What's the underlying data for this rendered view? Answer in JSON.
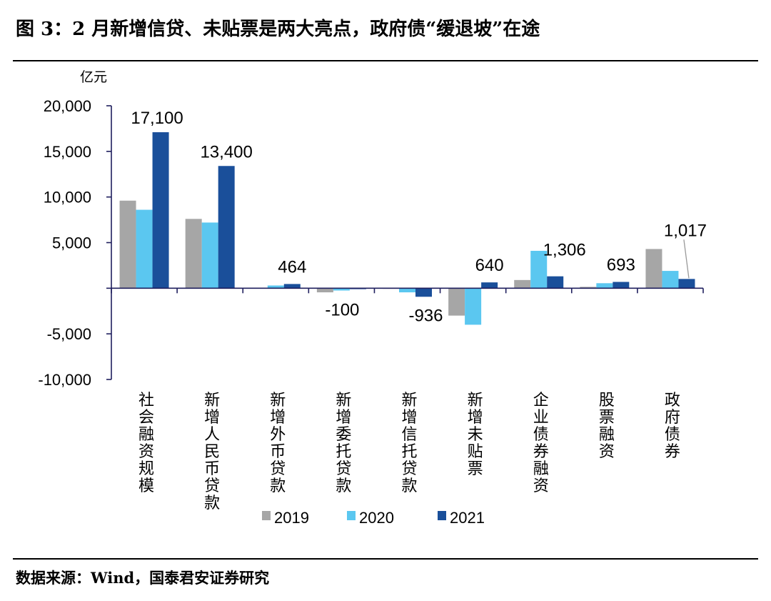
{
  "header": {
    "title": "图 3：2 月新增信贷、未贴票是两大亮点，政府债“缓退坡”在途"
  },
  "footer": {
    "source": "数据来源：Wind，国泰君安证券研究"
  },
  "colors": {
    "2019": "#a6a6a6",
    "2020": "#5bc7f0",
    "2021": "#1a4f9a",
    "axis": "#1f1f5e"
  },
  "chart_data": {
    "type": "bar",
    "ylabel": "亿元",
    "ylim": [
      -10000,
      20000
    ],
    "yticks": [
      20000,
      15000,
      10000,
      5000,
      0,
      -5000,
      -10000
    ],
    "ytick_labels": [
      "20,000",
      "15,000",
      "10,000",
      "5,000",
      "",
      "-5,000",
      "-10,000"
    ],
    "categories": [
      "社会融资规模",
      "新增人民币贷款",
      "新增外币贷款",
      "新增委托贷款",
      "新增信托贷款",
      "新增未贴票",
      "企业债券融资",
      "股票融资",
      "政府债券"
    ],
    "series": [
      {
        "name": "2019",
        "values": [
          9600,
          7600,
          50,
          -450,
          -50,
          -3000,
          900,
          150,
          4300
        ]
      },
      {
        "name": "2020",
        "values": [
          8600,
          7200,
          300,
          -250,
          -450,
          -4000,
          4100,
          550,
          1900
        ]
      },
      {
        "name": "2021",
        "values": [
          17100,
          13400,
          464,
          -100,
          -936,
          640,
          1306,
          693,
          1017
        ]
      }
    ],
    "data_labels": [
      {
        "category": "社会融资规模",
        "series": "2021",
        "text": "17,100"
      },
      {
        "category": "新增人民币贷款",
        "series": "2021",
        "text": "13,400"
      },
      {
        "category": "新增外币贷款",
        "series": "2021",
        "text": "464"
      },
      {
        "category": "新增委托贷款",
        "series": "2021",
        "text": "-100"
      },
      {
        "category": "新增信托贷款",
        "series": "2021",
        "text": "-936"
      },
      {
        "category": "新增未贴票",
        "series": "2021",
        "text": "640"
      },
      {
        "category": "企业债券融资",
        "series": "2021",
        "text": "1,306"
      },
      {
        "category": "股票融资",
        "series": "2021",
        "text": "693"
      },
      {
        "category": "政府债券",
        "series": "2021",
        "text": "1,017"
      }
    ],
    "legend": {
      "position": "bottom",
      "entries": [
        "2019",
        "2020",
        "2021"
      ]
    },
    "grid": false
  }
}
